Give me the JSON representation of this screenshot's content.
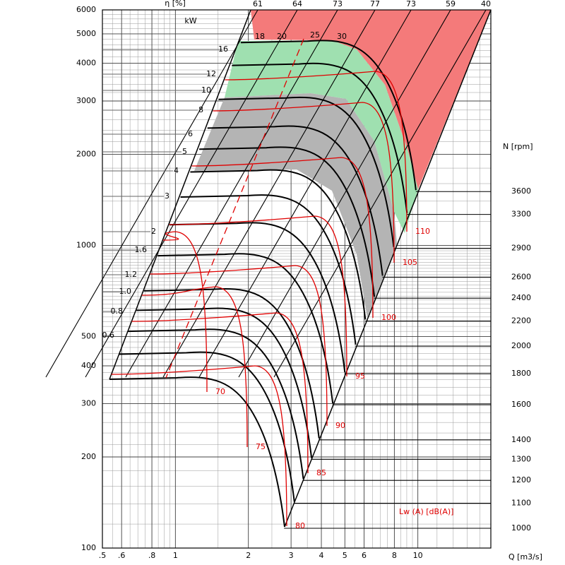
{
  "chart_data": {
    "type": "fan-chart",
    "x_label": "Q [m3/s]",
    "efficiency_label": "η [%]",
    "power_label": "kW",
    "speed_label": "N [rpm]",
    "sound_label": "Lw (A)  [dB(A)]",
    "log_x": true,
    "log_y": true,
    "xlim": [
      0.5,
      20
    ],
    "ylim": [
      100,
      6000
    ],
    "xticks": [
      {
        "value": 0.5,
        "label": ".5"
      },
      {
        "value": 0.6,
        "label": ".6"
      },
      {
        "value": 0.8,
        "label": ".8"
      },
      1,
      2,
      3,
      4,
      5,
      6,
      8,
      10
    ],
    "yticks": [
      100,
      200,
      300,
      400,
      500,
      1000,
      2000,
      3000,
      4000,
      5000,
      6000
    ],
    "speed_ticks": [
      1000,
      1100,
      1200,
      1300,
      1400,
      1600,
      1800,
      2000,
      2200,
      2400,
      2600,
      2900,
      3300,
      3600
    ],
    "efficiency_values": [
      61,
      64,
      73,
      77,
      73,
      59,
      40
    ],
    "power_values": [
      "16",
      "12",
      "10",
      "8",
      "6",
      "5",
      "4",
      "3",
      "2",
      "1.6",
      "1.2",
      "1.0",
      "0.8",
      "0.6"
    ],
    "top_power_values": [
      18,
      20,
      25,
      30
    ],
    "sound_values": [
      70,
      75,
      80,
      85,
      90,
      95,
      100,
      105,
      110
    ]
  }
}
